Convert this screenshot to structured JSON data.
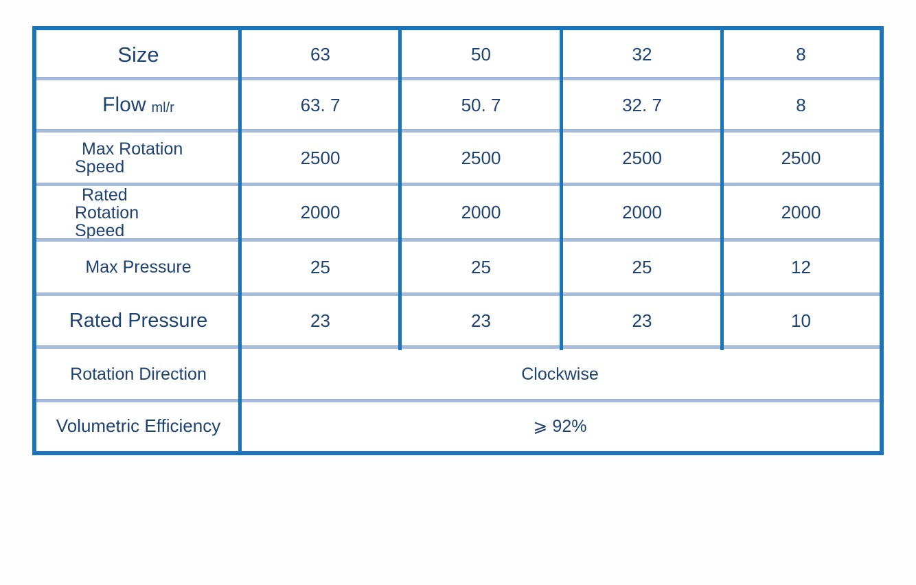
{
  "colors": {
    "table_border": "#1a75bd",
    "column_divider": "#1a75bd",
    "row_divider": "#a6bcda",
    "text": "#1e4272",
    "table_background": "#ffffff"
  },
  "chart_data": {
    "type": "table",
    "layout": {
      "grid": "on",
      "merged_rows_span_all_value_columns": true
    },
    "rows": [
      {
        "label": "Size",
        "values": [
          "63",
          "50",
          "32",
          "8"
        ]
      },
      {
        "label": "Flow",
        "unit": "ml/r",
        "values": [
          "63. 7",
          "50. 7",
          "32. 7",
          "8"
        ]
      },
      {
        "label": "Max Rotation Speed",
        "values": [
          "2500",
          "2500",
          "2500",
          "2500"
        ]
      },
      {
        "label": "Rated Rotation Speed",
        "values": [
          "2000",
          "2000",
          "2000",
          "2000"
        ]
      },
      {
        "label": "Max Pressure",
        "values": [
          "25",
          "25",
          "25",
          "12"
        ]
      },
      {
        "label": "Rated Pressure",
        "values": [
          "23",
          "23",
          "23",
          "10"
        ]
      },
      {
        "label": "Rotation Direction",
        "values": [
          "Clockwise"
        ],
        "colspan": 4
      },
      {
        "label": "Volumetric Efficiency",
        "values": [
          "⩾ 92%"
        ],
        "colspan": 4
      }
    ]
  }
}
